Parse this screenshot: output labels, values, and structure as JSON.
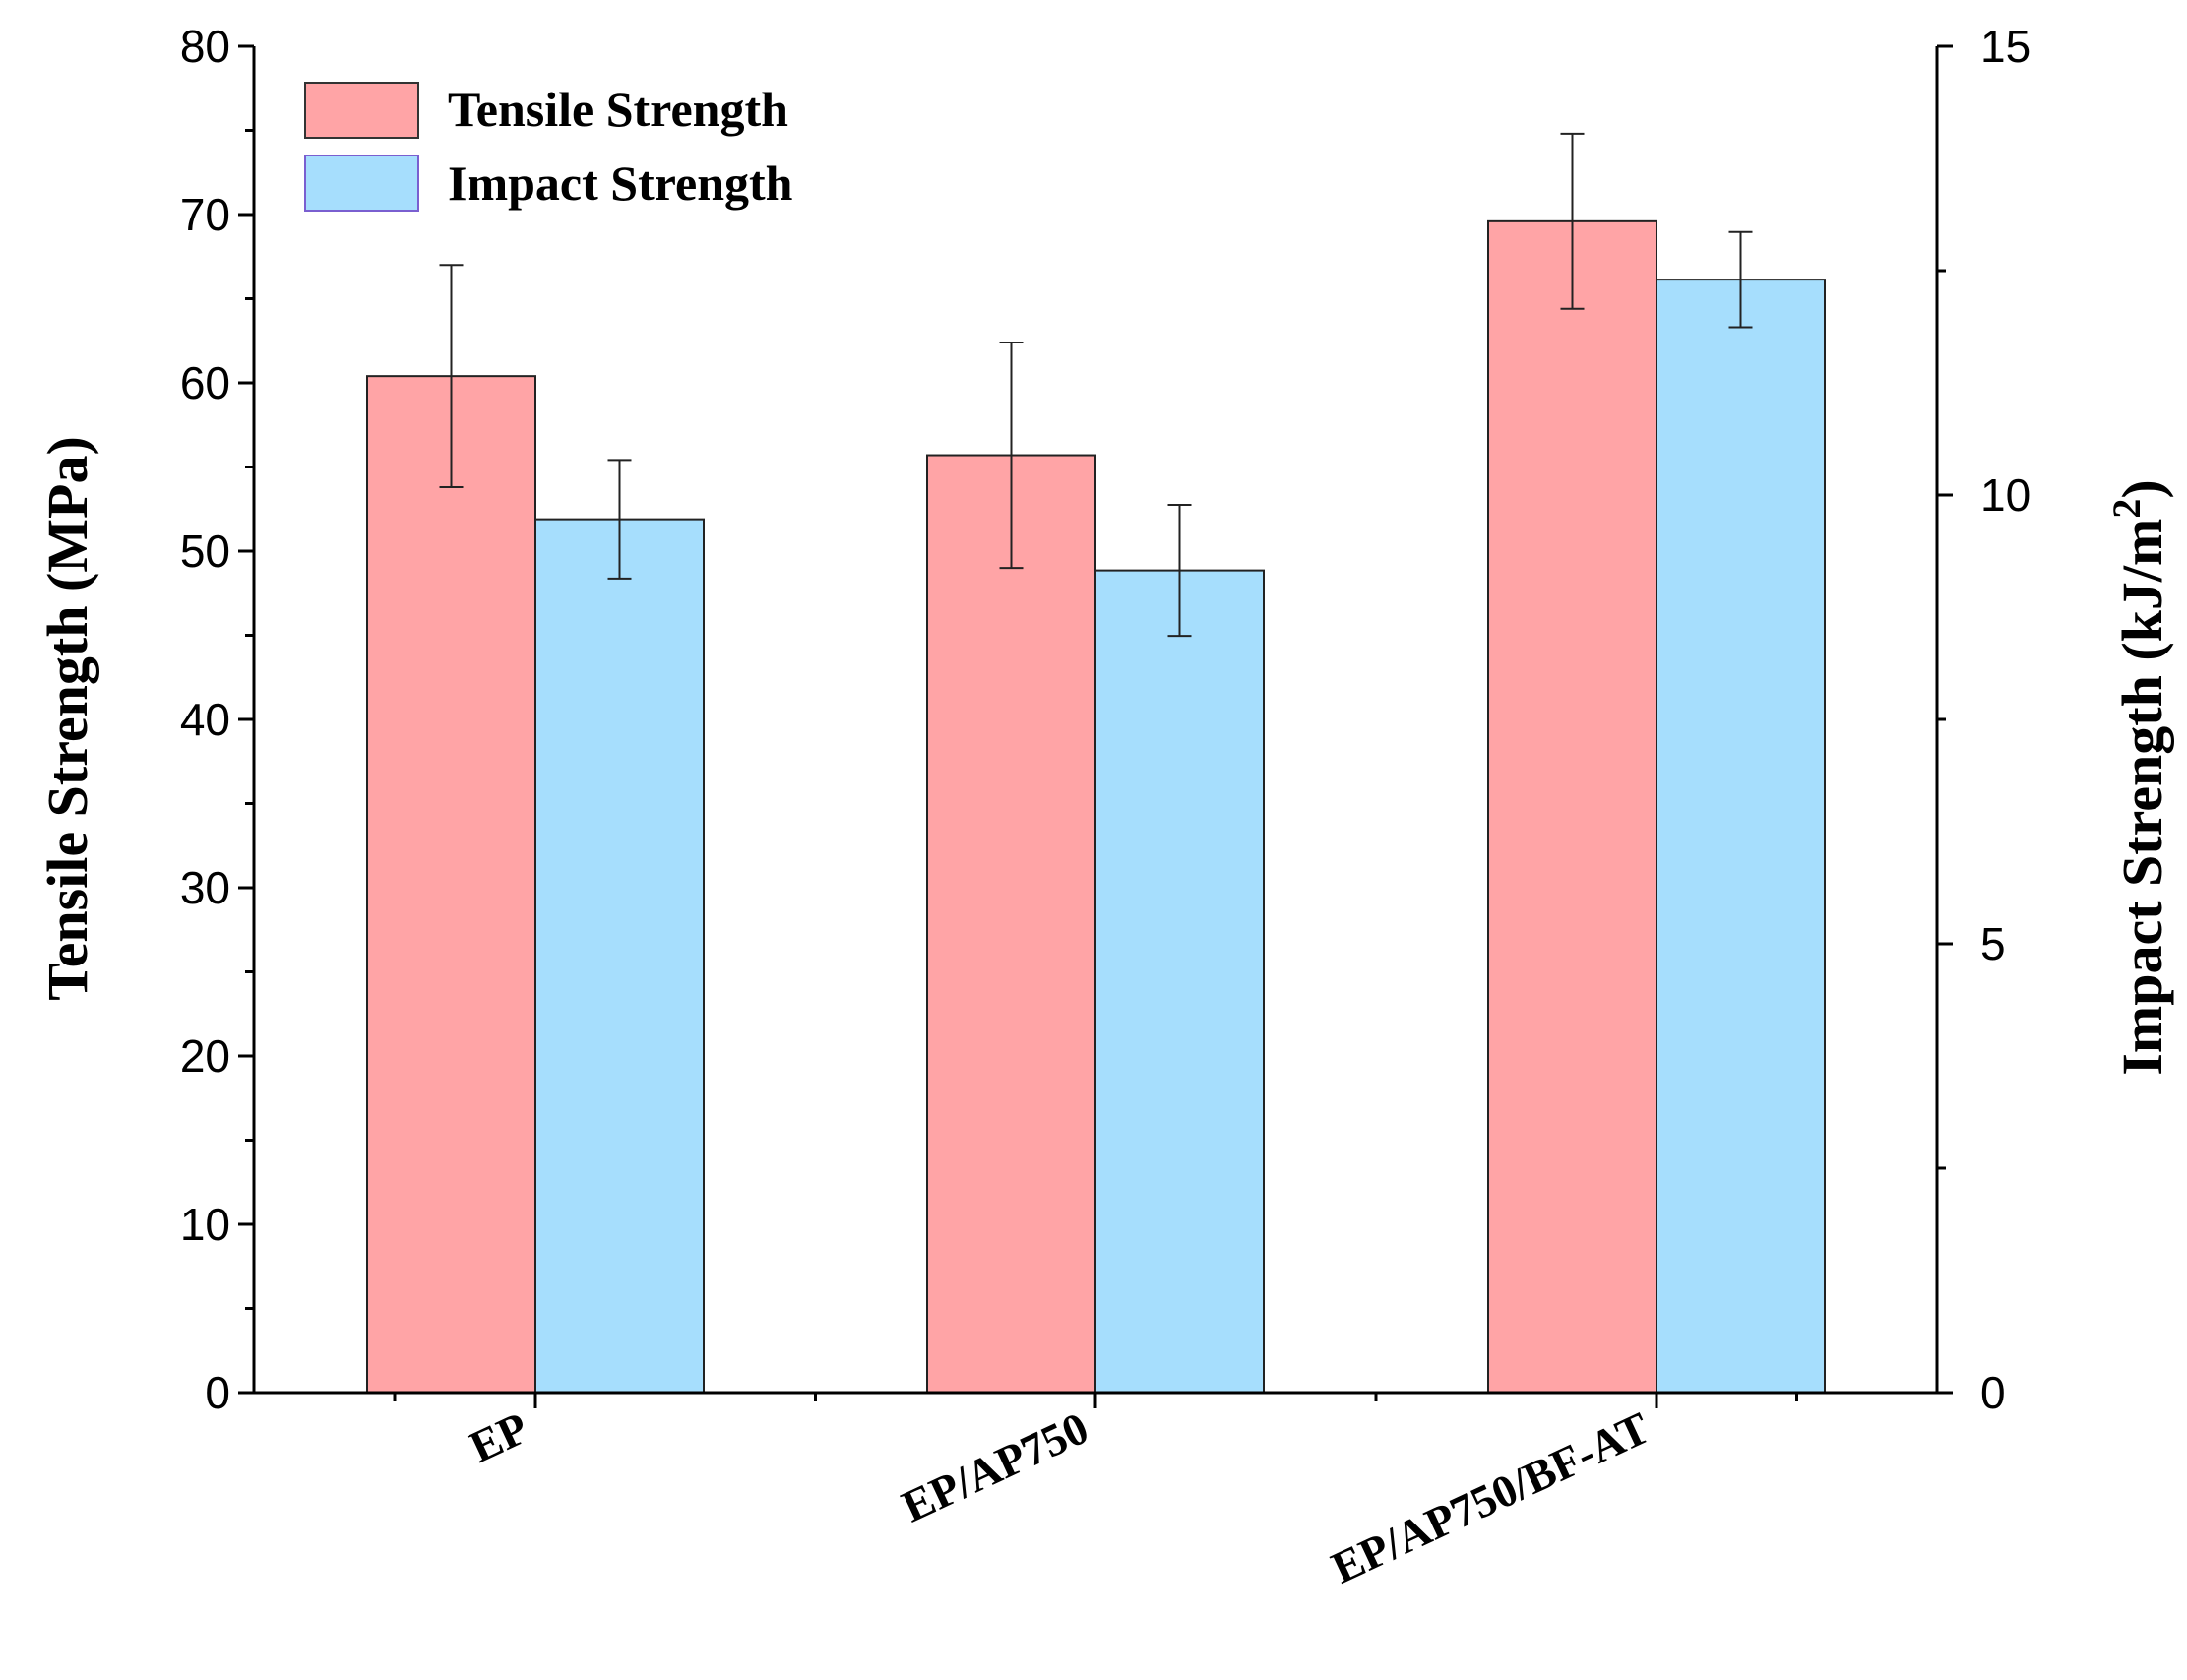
{
  "chart_data": {
    "type": "bar",
    "categories": [
      "EP",
      "EP/AP750",
      "EP/AP750/BF-AT"
    ],
    "series": [
      {
        "name": "Tensile Strength",
        "axis": "left",
        "color": "#FFA4A6",
        "values": [
          60.4,
          55.7,
          69.6
        ],
        "errors": [
          6.6,
          6.7,
          5.2
        ]
      },
      {
        "name": "Impact Strength",
        "axis": "right",
        "color": "#A6DEFD",
        "values": [
          9.73,
          9.16,
          12.4
        ],
        "errors": [
          0.66,
          0.73,
          0.53
        ]
      }
    ],
    "ylabel": "Tensile Strength (MPa)",
    "ylabel_right": "Impact Strength (kJ/m",
    "ylabel_right_sup": "2",
    "ylabel_right_close": ")",
    "ylim": [
      0,
      80
    ],
    "ylim_right": [
      0,
      15
    ],
    "yticks": [
      "0",
      "10",
      "20",
      "30",
      "40",
      "50",
      "60",
      "70",
      "80"
    ],
    "yticks_right": [
      "0",
      "5",
      "10",
      "15"
    ],
    "legend_position": "top-left",
    "grid": false
  }
}
